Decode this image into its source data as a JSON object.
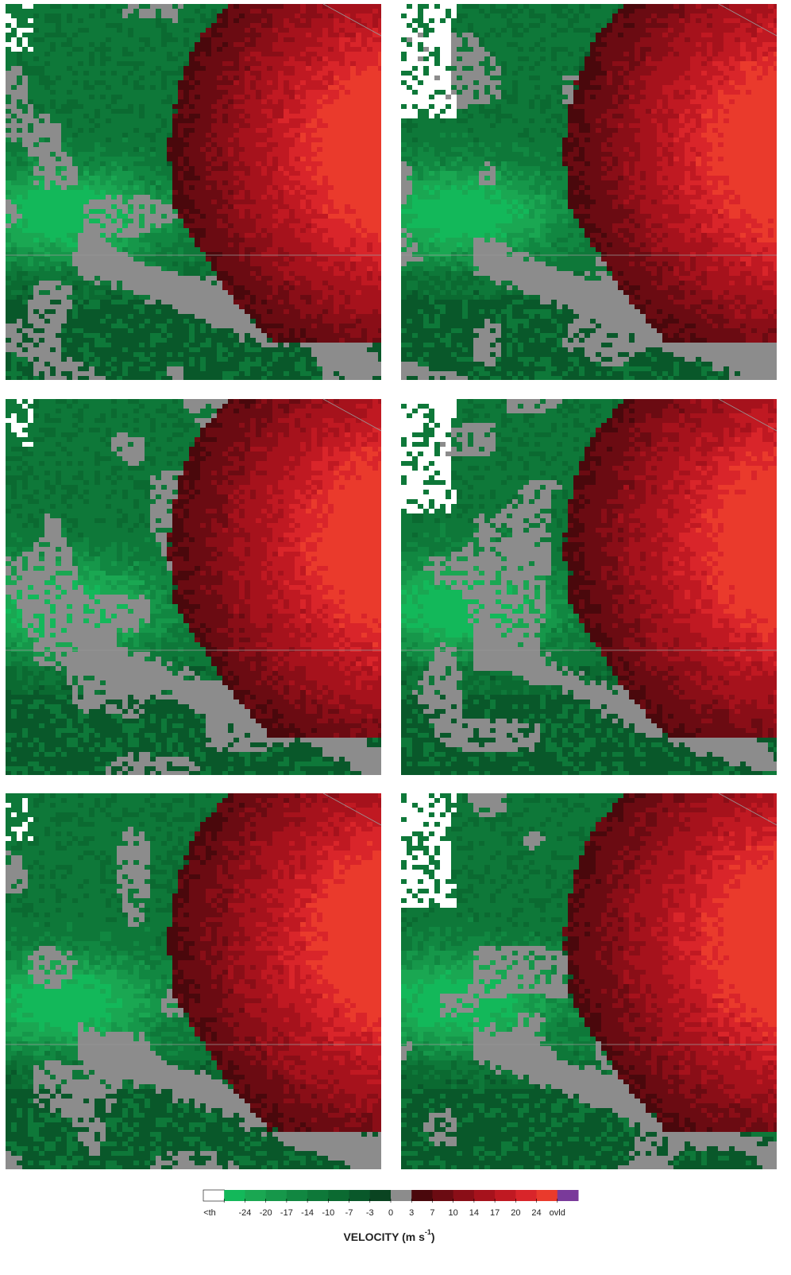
{
  "colorbar": {
    "labels": [
      "<th",
      "-24",
      "-20",
      "-17",
      "-14",
      "-10",
      "-7",
      "-3",
      "0",
      "3",
      "7",
      "10",
      "14",
      "17",
      "20",
      "24",
      "ovld"
    ],
    "colors": [
      "#ffffff",
      "#13b85a",
      "#1aa752",
      "#16974a",
      "#118741",
      "#0e7839",
      "#0b6a31",
      "#09582a",
      "#0a4421",
      "#8c8c8c",
      "#4a080c",
      "#6b0b12",
      "#8a0e17",
      "#a6121c",
      "#c01922",
      "#d9252a",
      "#ea3a2c",
      "#7a3a9a"
    ],
    "title": {
      "text": "VELOCITY (m s",
      "sup": "-1",
      "close": ")"
    }
  }
}
